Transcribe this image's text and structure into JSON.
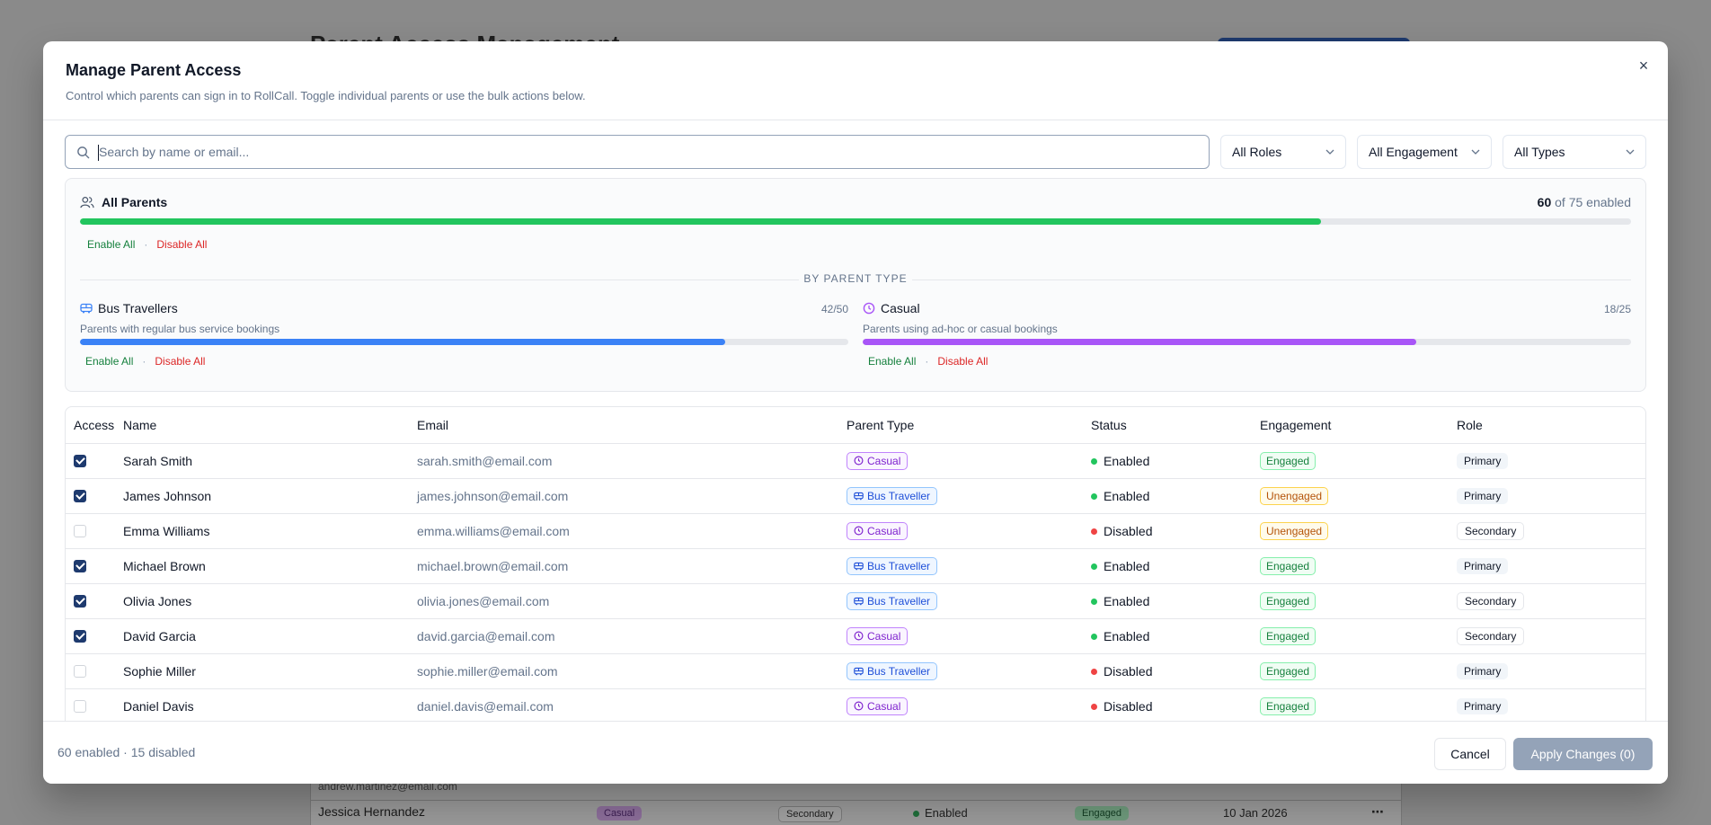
{
  "background": {
    "page_title": "Parent Access Management",
    "partial_email": "andrew.martinez@email.com",
    "row": {
      "name": "Jessica Hernandez",
      "type_badge": "Casual",
      "role_badge": "Secondary",
      "status": "Enabled",
      "engagement": "Engaged",
      "date": "10 Jan 2026",
      "more": "⋯"
    }
  },
  "modal": {
    "title": "Manage Parent Access",
    "description": "Control which parents can sign in to RollCall. Toggle individual parents or use the bulk actions below.",
    "close_label": "×"
  },
  "filters": {
    "search_placeholder": "Search by name or email...",
    "roles": "All Roles",
    "engagement": "All Engagement",
    "types": "All Types"
  },
  "summary": {
    "all_parents_label": "All Parents",
    "enabled_count": "60",
    "enabled_suffix": "of 75 enabled",
    "enabled_fraction": 0.8,
    "enable_all": "Enable All",
    "separator": "·",
    "disable_all": "Disable All",
    "by_type_label": "BY PARENT TYPE",
    "types": [
      {
        "name": "Bus Travellers",
        "count": "42/50",
        "fraction": 0.84,
        "description": "Parents with regular bus service bookings",
        "color": "#3b82f6",
        "enable_all": "Enable All",
        "disable_all": "Disable All"
      },
      {
        "name": "Casual",
        "count": "18/25",
        "fraction": 0.72,
        "description": "Parents using ad-hoc or casual bookings",
        "color": "#a855f7",
        "enable_all": "Enable All",
        "disable_all": "Disable All"
      }
    ],
    "overall_color": "#22c55e"
  },
  "table": {
    "headers": {
      "access": "Access",
      "name": "Name",
      "email": "Email",
      "type": "Parent Type",
      "status": "Status",
      "engagement": "Engagement",
      "role": "Role"
    },
    "rows": [
      {
        "access": true,
        "name": "Sarah Smith",
        "email": "sarah.smith@email.com",
        "type": "Casual",
        "status": "Enabled",
        "engagement": "Engaged",
        "role": "Primary"
      },
      {
        "access": true,
        "name": "James Johnson",
        "email": "james.johnson@email.com",
        "type": "Bus Traveller",
        "status": "Enabled",
        "engagement": "Unengaged",
        "role": "Primary"
      },
      {
        "access": false,
        "name": "Emma Williams",
        "email": "emma.williams@email.com",
        "type": "Casual",
        "status": "Disabled",
        "engagement": "Unengaged",
        "role": "Secondary"
      },
      {
        "access": true,
        "name": "Michael Brown",
        "email": "michael.brown@email.com",
        "type": "Bus Traveller",
        "status": "Enabled",
        "engagement": "Engaged",
        "role": "Primary"
      },
      {
        "access": true,
        "name": "Olivia Jones",
        "email": "olivia.jones@email.com",
        "type": "Bus Traveller",
        "status": "Enabled",
        "engagement": "Engaged",
        "role": "Secondary"
      },
      {
        "access": true,
        "name": "David Garcia",
        "email": "david.garcia@email.com",
        "type": "Casual",
        "status": "Enabled",
        "engagement": "Engaged",
        "role": "Secondary"
      },
      {
        "access": false,
        "name": "Sophie Miller",
        "email": "sophie.miller@email.com",
        "type": "Bus Traveller",
        "status": "Disabled",
        "engagement": "Engaged",
        "role": "Primary"
      },
      {
        "access": false,
        "name": "Daniel Davis",
        "email": "daniel.davis@email.com",
        "type": "Casual",
        "status": "Disabled",
        "engagement": "Engaged",
        "role": "Primary"
      }
    ]
  },
  "footer": {
    "summary": "60 enabled · 15 disabled",
    "cancel": "Cancel",
    "apply": "Apply Changes (0)"
  },
  "colors": {
    "enabled_dot": "#22c55e",
    "disabled_dot": "#ef4444",
    "accent": "#1e3a6e"
  },
  "icons": {
    "search": "search-icon",
    "users": "users-icon",
    "bus": "bus-icon",
    "clock": "clock-icon",
    "close": "close-icon",
    "chevron": "chevron-down-icon"
  }
}
